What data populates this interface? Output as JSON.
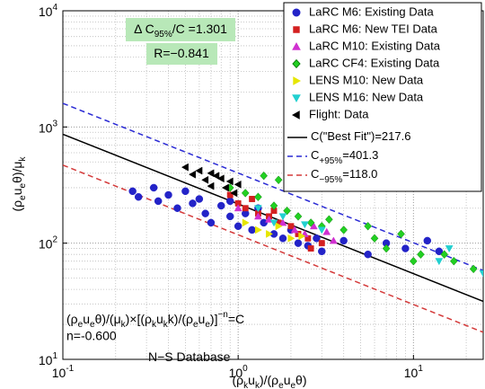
{
  "chart_data": {
    "type": "scatter",
    "log_x": true,
    "log_y": true,
    "grid": true,
    "legend_position": "upper right",
    "xlim": [
      0.1,
      25
    ],
    "ylim": [
      10,
      10000
    ],
    "xticks": [
      {
        "value": 0.1,
        "label": "10",
        "power": "-1"
      },
      {
        "value": 1,
        "label": "10",
        "power": "0"
      },
      {
        "value": 10,
        "label": "10",
        "power": "1"
      }
    ],
    "yticks": [
      {
        "value": 10,
        "label": "10",
        "power": "1"
      },
      {
        "value": 100,
        "label": "10",
        "power": "2"
      },
      {
        "value": 1000,
        "label": "10",
        "power": "3"
      },
      {
        "value": 10000,
        "label": "10",
        "power": "4"
      }
    ],
    "xminorticks": [
      0.2,
      0.3,
      0.4,
      0.5,
      0.6,
      0.7,
      0.8,
      0.9,
      2,
      3,
      4,
      5,
      6,
      7,
      8,
      9,
      20
    ],
    "yminorticks": [
      20,
      30,
      40,
      50,
      60,
      70,
      80,
      90,
      200,
      300,
      400,
      500,
      600,
      700,
      800,
      900,
      2000,
      3000,
      4000,
      5000,
      6000,
      7000,
      8000,
      9000
    ],
    "xlabel": [
      {
        "text": "(ρ"
      },
      {
        "text": "k",
        "pos": "sub"
      },
      {
        "text": "u"
      },
      {
        "text": "k",
        "pos": "sub"
      },
      {
        "text": ")/(ρ"
      },
      {
        "text": "e",
        "pos": "sub"
      },
      {
        "text": "u"
      },
      {
        "text": "e",
        "pos": "sub"
      },
      {
        "text": "θ)"
      }
    ],
    "ylabel": [
      {
        "text": "(ρ"
      },
      {
        "text": "e",
        "pos": "sub"
      },
      {
        "text": "u"
      },
      {
        "text": "e",
        "pos": "sub"
      },
      {
        "text": "θ)/μ"
      },
      {
        "text": "k",
        "pos": "sub"
      }
    ],
    "annotations": [
      [
        {
          "text": "Δ C"
        },
        {
          "text": "95%",
          "pos": "sub"
        },
        {
          "text": "/C =1.301"
        }
      ],
      [
        {
          "text": "R=−0.841"
        }
      ],
      [
        {
          "text": "(ρ"
        },
        {
          "text": "e",
          "pos": "sub"
        },
        {
          "text": "u"
        },
        {
          "text": "e",
          "pos": "sub"
        },
        {
          "text": "θ)/(μ"
        },
        {
          "text": "k",
          "pos": "sub"
        },
        {
          "text": ")×[(ρ"
        },
        {
          "text": "k",
          "pos": "sub"
        },
        {
          "text": "u"
        },
        {
          "text": "k",
          "pos": "sub"
        },
        {
          "text": "k)/(ρ"
        },
        {
          "text": "e",
          "pos": "sub"
        },
        {
          "text": "u"
        },
        {
          "text": "e",
          "pos": "sub"
        },
        {
          "text": ")]"
        },
        {
          "text": "−n",
          "pos": "super"
        },
        {
          "text": "=C"
        }
      ],
      [
        {
          "text": "N−S Database"
        }
      ]
    ],
    "exponent": {
      "value": -0.6,
      "label": "n=-0.600"
    },
    "fits": [
      {
        "symbol": "C",
        "text": "(\"Best Fit\")=217.6",
        "value": 217.6,
        "color": "#000000",
        "dashed": false
      },
      {
        "symbol": "C",
        "subscript": "+95%",
        "text": "=401.3",
        "value": 401.3,
        "color": "#2a2ad4",
        "dashed": true
      },
      {
        "symbol": "C",
        "subscript": "−95%",
        "text": "=118.0",
        "value": 118.0,
        "color": "#d43a3a",
        "dashed": true
      }
    ],
    "series": [
      {
        "name": "LaRC M6: Existing Data",
        "color": "#2323c8",
        "marker": "circle",
        "x": [
          0.25,
          0.27,
          0.33,
          0.35,
          0.4,
          0.45,
          0.5,
          0.55,
          0.6,
          0.65,
          0.7,
          0.8,
          0.9,
          1.0,
          1.1,
          1.2,
          1.4,
          1.6,
          1.8,
          2.0,
          2.2,
          2.5,
          2.8,
          3.0,
          4.0,
          5.5,
          7.0,
          9.0,
          12,
          14,
          0.9,
          1.3
        ],
        "values": [
          280,
          250,
          300,
          230,
          260,
          200,
          280,
          220,
          240,
          180,
          150,
          210,
          170,
          140,
          180,
          130,
          150,
          120,
          110,
          130,
          100,
          95,
          110,
          85,
          105,
          80,
          100,
          90,
          105,
          85,
          230,
          200
        ]
      },
      {
        "name": "LaRC M6: New TEI Data",
        "color": "#d42020",
        "marker": "square",
        "x": [
          0.9,
          1.0,
          1.1,
          1.3,
          1.5,
          1.7,
          2.0,
          2.2,
          2.5,
          1.2,
          1.6,
          3.0,
          2.6
        ],
        "values": [
          260,
          220,
          200,
          180,
          170,
          150,
          140,
          120,
          110,
          240,
          190,
          100,
          90
        ]
      },
      {
        "name": "LaRC M10: Existing Data",
        "color": "#d030d0",
        "marker": "triangle-up",
        "x": [
          1.0,
          1.3,
          1.5,
          1.8,
          2.1,
          2.4,
          2.7,
          3.2,
          3.5
        ],
        "values": [
          200,
          170,
          160,
          150,
          130,
          120,
          140,
          125,
          105
        ]
      },
      {
        "name": "LaRC CF4: Existing Data",
        "color": "#22d022",
        "marker": "diamond",
        "x": [
          0.9,
          1.1,
          1.3,
          1.6,
          1.9,
          2.2,
          2.6,
          3.0,
          3.3,
          4,
          6,
          7,
          8.5,
          11,
          15,
          17,
          22,
          1.4,
          1.7,
          2.0,
          2.5,
          5.5,
          10
        ],
        "values": [
          300,
          270,
          250,
          210,
          190,
          170,
          150,
          140,
          160,
          130,
          110,
          90,
          120,
          80,
          80,
          70,
          60,
          380,
          350,
          330,
          300,
          140,
          70
        ]
      },
      {
        "name": "LENS M10: New Data",
        "color": "#e6e600",
        "marker": "triangle-right",
        "x": [
          1.1,
          1.3,
          1.5,
          1.7,
          2.0,
          2.3
        ],
        "values": [
          150,
          130,
          120,
          140,
          110,
          115
        ]
      },
      {
        "name": "LENS M16: New Data",
        "color": "#22d0d0",
        "marker": "triangle-down",
        "x": [
          1.3,
          1.8,
          2.4,
          3.0,
          1.6,
          14,
          16,
          25
        ],
        "values": [
          200,
          170,
          145,
          130,
          150,
          70,
          90,
          55
        ]
      },
      {
        "name": "Flight: Data",
        "color": "#000000",
        "marker": "triangle-left",
        "x": [
          0.5,
          0.6,
          0.7,
          0.75,
          0.8,
          0.9,
          0.55,
          0.65,
          0.85,
          1.0,
          0.95,
          0.7
        ],
        "values": [
          450,
          420,
          400,
          380,
          360,
          340,
          390,
          350,
          300,
          320,
          270,
          310
        ]
      }
    ]
  }
}
